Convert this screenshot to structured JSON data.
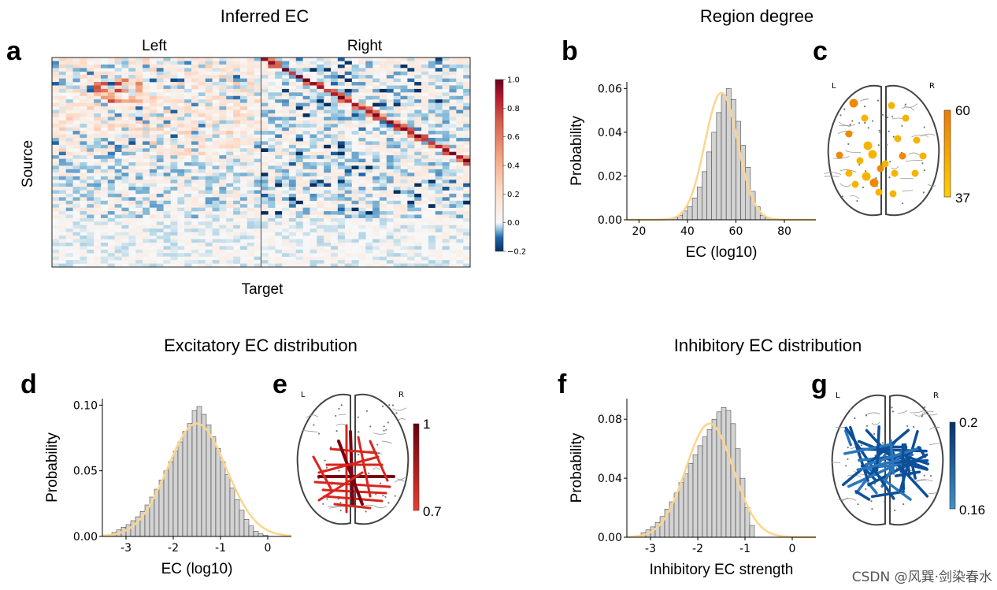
{
  "colors": {
    "bar_fill": "#d3d3d3",
    "bar_edge": "#333333",
    "fit_line": "#fdd58c",
    "brain_outline": "#444444",
    "node_orange": "#f0a000",
    "excitatory": "#c8102e",
    "inhibitory": "#0b4f96"
  },
  "letters": {
    "a": "a",
    "b": "b",
    "c": "c",
    "d": "d",
    "e": "e",
    "f": "f",
    "g": "g"
  },
  "titles": {
    "a": "Inferred EC",
    "bc": "Region degree",
    "de": "Excitatory EC distribution",
    "fg": "Inhibitory EC distribution"
  },
  "brain_labels": {
    "left": "L",
    "right": "R"
  },
  "chart_data": [
    {
      "id": "a",
      "type": "heatmap",
      "title": "Inferred EC",
      "xlabel": "Target",
      "ylabel": "Source",
      "column_groups": [
        "Left",
        "Right"
      ],
      "colorbar": {
        "range": [
          -0.2,
          1.0
        ],
        "ticks": [
          "1.0",
          "0.8",
          "0.6",
          "0.4",
          "0.2",
          "0.0",
          "−0.2"
        ],
        "colormap": "RdBu_r"
      }
    },
    {
      "id": "b",
      "type": "bar",
      "title": "Region degree",
      "xlabel": "EC (log10)",
      "ylabel": "Probability",
      "xlim": [
        15,
        93
      ],
      "ylim": [
        0,
        0.063
      ],
      "xticks": [
        20,
        40,
        60,
        80
      ],
      "xtick_labels": [
        "20",
        "40",
        "60",
        "80"
      ],
      "yticks": [
        0,
        0.02,
        0.04,
        0.06
      ],
      "ytick_labels": [
        "0.00",
        "0.02",
        "0.04",
        "0.06"
      ],
      "bin_edges": [
        32,
        34,
        36,
        38,
        40,
        42,
        44,
        46,
        48,
        50,
        52,
        54,
        56,
        58,
        60,
        62,
        64,
        66,
        68,
        70,
        72,
        74
      ],
      "values": [
        0.0005,
        0.001,
        0.002,
        0.004,
        0.006,
        0.01,
        0.015,
        0.022,
        0.031,
        0.04,
        0.049,
        0.057,
        0.06,
        0.055,
        0.045,
        0.034,
        0.024,
        0.013,
        0.006,
        0.002,
        0.001
      ],
      "fit": {
        "mean": 54,
        "sd": 6.8,
        "peak": 0.058
      }
    },
    {
      "id": "c",
      "type": "scatter",
      "colorbar": {
        "ticks": [
          "60",
          "37"
        ]
      }
    },
    {
      "id": "d",
      "type": "bar",
      "title": "Excitatory EC distribution",
      "xlabel": "EC (log10)",
      "ylabel": "Probability",
      "xlim": [
        -3.5,
        0.5
      ],
      "ylim": [
        0,
        0.105
      ],
      "xticks": [
        -3,
        -2,
        -1,
        0
      ],
      "xtick_labels": [
        "-3",
        "-2",
        "-1",
        "0"
      ],
      "yticks": [
        0,
        0.05,
        0.1
      ],
      "ytick_labels": [
        "0.00",
        "0.05",
        "0.10"
      ],
      "bin_edges": [
        -3.3,
        -3.2,
        -3.1,
        -3.0,
        -2.9,
        -2.8,
        -2.7,
        -2.6,
        -2.5,
        -2.4,
        -2.3,
        -2.2,
        -2.1,
        -2.0,
        -1.9,
        -1.8,
        -1.7,
        -1.6,
        -1.5,
        -1.4,
        -1.3,
        -1.2,
        -1.1,
        -1.0,
        -0.9,
        -0.8,
        -0.7,
        -0.6,
        -0.5,
        -0.4,
        -0.3,
        -0.2,
        -0.1,
        0.0
      ],
      "values": [
        0.003,
        0.005,
        0.007,
        0.009,
        0.012,
        0.015,
        0.019,
        0.024,
        0.03,
        0.036,
        0.043,
        0.05,
        0.057,
        0.065,
        0.072,
        0.08,
        0.086,
        0.096,
        0.099,
        0.093,
        0.085,
        0.076,
        0.067,
        0.057,
        0.047,
        0.037,
        0.028,
        0.02,
        0.013,
        0.008,
        0.004,
        0.002,
        0.001
      ],
      "fit": {
        "mean": -1.5,
        "sd": 0.62,
        "peak": 0.086
      }
    },
    {
      "id": "e",
      "type": "diagram",
      "colorbar": {
        "ticks": [
          "1",
          "0.7"
        ]
      }
    },
    {
      "id": "f",
      "type": "bar",
      "title": "Inhibitory EC distribution",
      "xlabel": "Inhibitory EC strength",
      "ylabel": "Probability",
      "xlim": [
        -3.5,
        0.5
      ],
      "ylim": [
        0,
        0.094
      ],
      "xticks": [
        -3,
        -2,
        -1,
        0
      ],
      "xtick_labels": [
        "-3",
        "-2",
        "-1",
        "0"
      ],
      "yticks": [
        0,
        0.04,
        0.08
      ],
      "ytick_labels": [
        "0.00",
        "0.04",
        "0.08"
      ],
      "bin_edges": [
        -3.2,
        -3.1,
        -3.0,
        -2.9,
        -2.8,
        -2.7,
        -2.6,
        -2.5,
        -2.4,
        -2.3,
        -2.2,
        -2.1,
        -2.0,
        -1.9,
        -1.8,
        -1.7,
        -1.6,
        -1.5,
        -1.4,
        -1.3,
        -1.2,
        -1.1,
        -1.0,
        -0.9,
        -0.8
      ],
      "values": [
        0.003,
        0.005,
        0.007,
        0.01,
        0.014,
        0.019,
        0.024,
        0.03,
        0.037,
        0.043,
        0.05,
        0.056,
        0.062,
        0.068,
        0.073,
        0.08,
        0.085,
        0.088,
        0.086,
        0.077,
        0.06,
        0.04,
        0.02,
        0.008
      ],
      "fit": {
        "mean": -1.75,
        "sd": 0.5,
        "peak": 0.077
      }
    },
    {
      "id": "g",
      "type": "diagram",
      "colorbar": {
        "ticks": [
          "0.2",
          "0.16"
        ]
      }
    }
  ],
  "watermark": "CSDN @风巽·剑染春水"
}
